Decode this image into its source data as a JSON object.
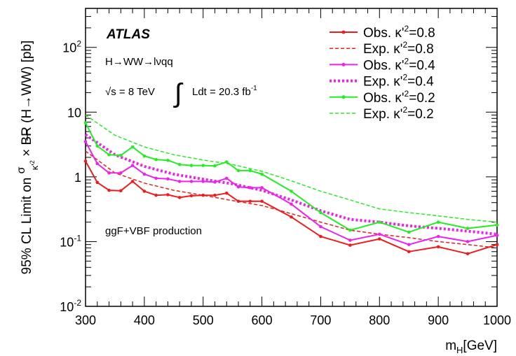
{
  "chart_data": {
    "type": "line",
    "title": "",
    "xlabel": "m",
    "xlabel_sub": "H",
    "xlabel_unit": "[GeV]",
    "ylabel": "95% CL Limit on σ/κ'² × BR (H→WW) [pb]",
    "ylabel_parts": {
      "prefix": "95% CL Limit on",
      "frac_num": "σ",
      "frac_den": "κ'",
      "frac_den_sup": "2",
      "suffix": "× BR (H→WW) [pb]"
    },
    "xlim": [
      300,
      1000
    ],
    "ylim": [
      0.01,
      400
    ],
    "yscale": "log",
    "x_ticks": [
      "300",
      "400",
      "500",
      "600",
      "700",
      "800",
      "900",
      "1000"
    ],
    "y_ticks": [
      {
        "base": "10",
        "exp": "-2",
        "value": 0.01
      },
      {
        "base": "10",
        "exp": "-1",
        "value": 0.1
      },
      {
        "base": "1",
        "exp": "",
        "value": 1
      },
      {
        "base": "10",
        "exp": "",
        "value": 10
      },
      {
        "base": "10",
        "exp": "2",
        "value": 100
      }
    ],
    "grid": false,
    "legend_position": "top-right",
    "annotations": {
      "experiment": "ATLAS",
      "channel": "H→WW→lνqq",
      "energy": "√s = 8 TeV",
      "integral": "∫",
      "lumi_text": "Ldt = 20.3 fb",
      "lumi_sup": "-1",
      "production": "ggF+VBF production"
    },
    "series": [
      {
        "name": "Obs. κ'²=0.8",
        "label_main": "Obs. κ'",
        "label_sup": "2",
        "label_tail": "=0.8",
        "color": "#ee1c1c",
        "style": "solid",
        "markers": true,
        "width": 2,
        "x": [
          300,
          320,
          340,
          360,
          380,
          400,
          420,
          440,
          460,
          480,
          500,
          520,
          540,
          560,
          580,
          600,
          650,
          700,
          750,
          800,
          850,
          900,
          950,
          1000
        ],
        "y": [
          1.75,
          0.82,
          0.62,
          0.61,
          0.85,
          0.6,
          0.52,
          0.53,
          0.48,
          0.51,
          0.52,
          0.52,
          0.56,
          0.42,
          0.42,
          0.42,
          0.24,
          0.12,
          0.088,
          0.11,
          0.07,
          0.083,
          0.065,
          0.09
        ]
      },
      {
        "name": "Exp. κ'²=0.8",
        "label_main": "Exp. κ'",
        "label_sup": "2",
        "label_tail": "=0.8",
        "color": "#ee1c1c",
        "style": "dashed",
        "markers": false,
        "width": 1.5,
        "x": [
          300,
          350,
          400,
          450,
          500,
          550,
          600,
          650,
          700,
          750,
          800,
          850,
          900,
          950,
          1000
        ],
        "y": [
          2.5,
          1.15,
          0.8,
          0.62,
          0.52,
          0.43,
          0.36,
          0.27,
          0.2,
          0.15,
          0.13,
          0.115,
          0.1,
          0.09,
          0.08
        ]
      },
      {
        "name": "Obs. κ'²=0.4",
        "label_main": "Obs. κ'",
        "label_sup": "2",
        "label_tail": "=0.4",
        "color": "#ee22ee",
        "style": "solid",
        "markers": true,
        "width": 2,
        "x": [
          300,
          320,
          340,
          360,
          380,
          400,
          420,
          440,
          460,
          480,
          500,
          520,
          540,
          560,
          580,
          600,
          650,
          700,
          750,
          800,
          850,
          900,
          950,
          1000
        ],
        "y": [
          3.5,
          1.6,
          1.15,
          1.15,
          1.5,
          1.1,
          0.95,
          0.93,
          0.85,
          0.85,
          0.85,
          0.83,
          0.95,
          0.7,
          0.68,
          0.68,
          0.38,
          0.17,
          0.105,
          0.13,
          0.09,
          0.12,
          0.1,
          0.125
        ]
      },
      {
        "name": "Exp. κ'²=0.4",
        "label_main": "Exp. κ'",
        "label_sup": "2",
        "label_tail": "=0.4",
        "color": "#ee22ee",
        "style": "dotted",
        "markers": false,
        "width": 4,
        "x": [
          300,
          350,
          400,
          450,
          500,
          550,
          600,
          650,
          700,
          750,
          800,
          850,
          900,
          950,
          1000
        ],
        "y": [
          4.5,
          2.2,
          1.45,
          1.1,
          0.92,
          0.78,
          0.62,
          0.44,
          0.3,
          0.22,
          0.2,
          0.175,
          0.16,
          0.145,
          0.13
        ]
      },
      {
        "name": "Obs. κ'²=0.2",
        "label_main": "Obs. κ'",
        "label_sup": "2",
        "label_tail": "=0.2",
        "color": "#22ee22",
        "style": "solid",
        "markers": true,
        "width": 2,
        "x": [
          300,
          320,
          340,
          360,
          380,
          400,
          420,
          440,
          460,
          480,
          500,
          520,
          540,
          560,
          580,
          600,
          650,
          700,
          750,
          800,
          850,
          900,
          950,
          1000
        ],
        "y": [
          6.8,
          3.0,
          2.2,
          2.15,
          2.9,
          2.1,
          1.85,
          1.8,
          1.55,
          1.5,
          1.5,
          1.48,
          1.7,
          1.25,
          1.25,
          1.1,
          0.6,
          0.28,
          0.15,
          0.2,
          0.14,
          0.2,
          0.16,
          0.18
        ]
      },
      {
        "name": "Exp. κ'²=0.2",
        "label_main": "Exp. κ'",
        "label_sup": "2",
        "label_tail": "=0.2",
        "color": "#22ee22",
        "style": "dashed",
        "markers": false,
        "width": 1.5,
        "x": [
          300,
          350,
          400,
          450,
          500,
          550,
          600,
          650,
          700,
          750,
          800,
          850,
          900,
          950,
          1000
        ],
        "y": [
          9.0,
          4.4,
          2.9,
          2.2,
          1.82,
          1.55,
          1.22,
          0.87,
          0.6,
          0.44,
          0.32,
          0.28,
          0.25,
          0.22,
          0.2
        ]
      }
    ]
  }
}
